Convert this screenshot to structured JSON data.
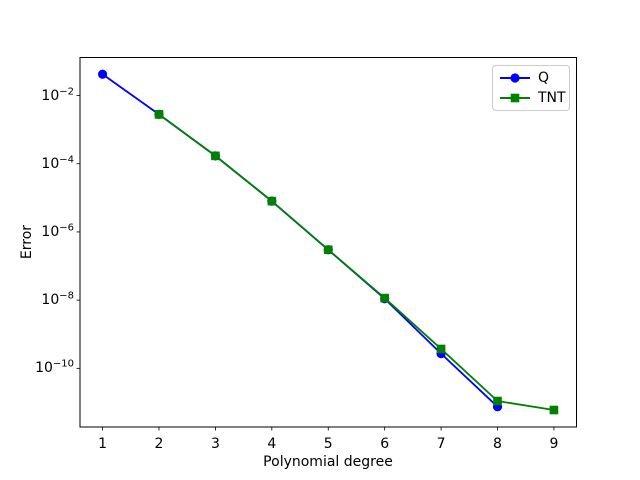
{
  "figure": {
    "background": "#ffffff",
    "axis_color": "#000000"
  },
  "chart_data": {
    "type": "line",
    "title": "",
    "xlabel": "Polynomial degree",
    "ylabel": "Error",
    "x_ticks": [
      1,
      2,
      3,
      4,
      5,
      6,
      7,
      8,
      9
    ],
    "y_scale": "log",
    "y_tick_exponents": [
      -2,
      -4,
      -6,
      -8,
      -10
    ],
    "xlim": [
      0.6,
      9.4
    ],
    "ylim_log10": [
      -11.72,
      -0.885
    ],
    "grid": false,
    "legend_position": "upper right",
    "series": [
      {
        "name": "Q",
        "color": "#0000ff",
        "marker": "circle",
        "x": [
          1,
          2,
          3,
          4,
          5,
          6,
          7,
          8
        ],
        "y": [
          0.042,
          0.0028,
          0.00017,
          8e-06,
          3e-07,
          1.1e-08,
          2.7e-10,
          7.5e-12
        ]
      },
      {
        "name": "TNT",
        "color": "#008000",
        "marker": "square",
        "x": [
          2,
          3,
          4,
          5,
          6,
          7,
          8,
          9
        ],
        "y": [
          0.0028,
          0.00017,
          8e-06,
          3e-07,
          1.15e-08,
          3.7e-10,
          1.1e-11,
          6e-12
        ]
      }
    ]
  }
}
